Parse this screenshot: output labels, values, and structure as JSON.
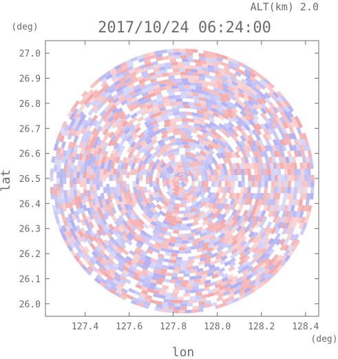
{
  "chart_data": {
    "type": "heatmap",
    "title": "2017/10/24 06:24:00",
    "subtitle": "ALT(km) 2.0",
    "xlabel": "lon",
    "ylabel": "lat",
    "xunit": "(deg)",
    "yunit": "(deg)",
    "xlim": [
      127.22,
      128.46
    ],
    "ylim": [
      25.95,
      27.05
    ],
    "xticks": [
      127.4,
      127.6,
      127.8,
      128.0,
      128.2,
      128.4
    ],
    "xtick_labels": [
      "127.4",
      "127.6",
      "127.8",
      "128.0",
      "128.2",
      "128.4"
    ],
    "yticks": [
      26.0,
      26.1,
      26.2,
      26.3,
      26.4,
      26.5,
      26.6,
      26.7,
      26.8,
      26.9,
      27.0
    ],
    "ytick_labels": [
      "26.0",
      "26.1",
      "26.2",
      "26.3",
      "26.4",
      "26.5",
      "26.6",
      "26.7",
      "26.8",
      "26.9",
      "27.0"
    ],
    "scan_center": {
      "lon": 127.84,
      "lat": 26.49
    },
    "scan_radius_deg": 0.6,
    "colors": {
      "positive": "#f4a8a8",
      "negative": "#b0b0f4",
      "axes": "#6a6a6a"
    },
    "grid": false
  }
}
